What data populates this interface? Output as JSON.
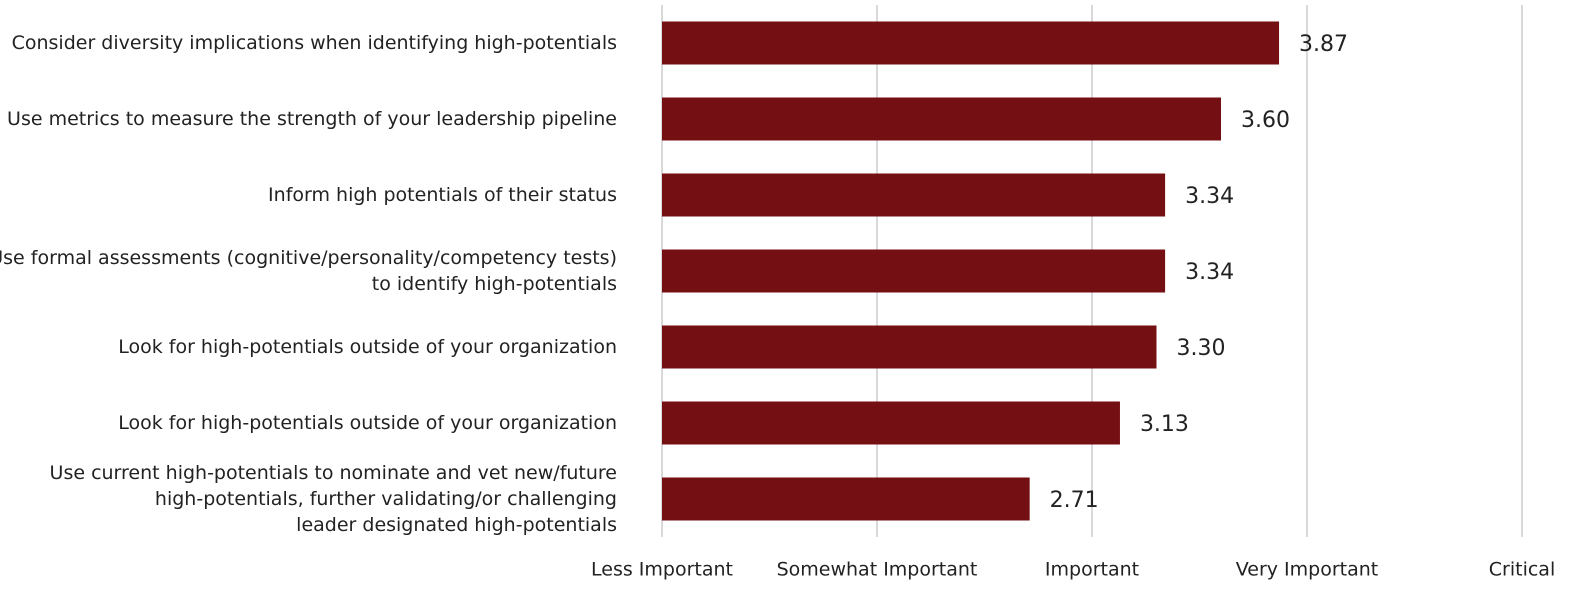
{
  "chart_data": {
    "type": "barh",
    "categories": [
      "Consider diversity implications when identifying high-potentials",
      "Use metrics to measure the strength of your leadership pipeline",
      "Inform high potentials of their status",
      "Use formal assessments (cognitive/personality/competency tests)\nto identify high-potentials",
      "Look for high-potentials outside of your organization",
      "Look for high-potentials outside of your organization",
      "Use current high-potentials to nominate and vet new/future\nhigh-potentials, further validating/or challenging\nleader designated high-potentials"
    ],
    "values": [
      3.87,
      3.6,
      3.34,
      3.34,
      3.3,
      3.13,
      2.71
    ],
    "value_labels": [
      "3.87",
      "3.60",
      "3.34",
      "3.34",
      "3.30",
      "3.13",
      "2.71"
    ],
    "color": "#740f13",
    "xlim": [
      1,
      5
    ],
    "xticks": [
      {
        "value": 1,
        "label": "Less Important"
      },
      {
        "value": 2,
        "label": "Somewhat Important"
      },
      {
        "value": 3,
        "label": "Important"
      },
      {
        "value": 4,
        "label": "Very Important"
      },
      {
        "value": 5,
        "label": "Critical"
      }
    ],
    "grid": true
  }
}
